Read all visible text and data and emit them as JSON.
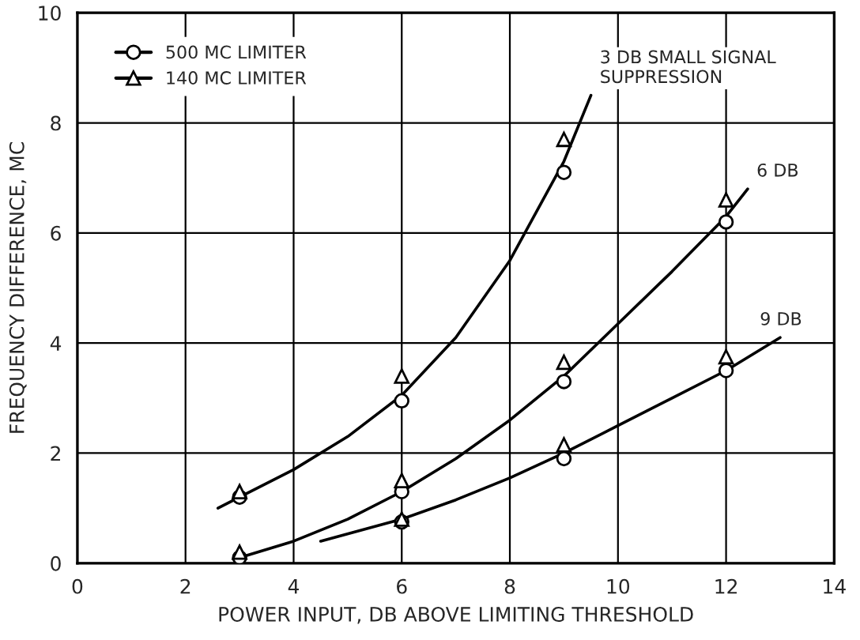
{
  "chart_data": {
    "type": "scatter",
    "xlabel": "POWER INPUT, DB ABOVE LIMITING THRESHOLD",
    "ylabel": "FREQUENCY DIFFERENCE, MC",
    "xlim": [
      0,
      14
    ],
    "ylim": [
      0,
      10
    ],
    "xticks": [
      0,
      2,
      4,
      6,
      8,
      10,
      12,
      14
    ],
    "yticks": [
      0,
      2,
      4,
      6,
      8,
      10
    ],
    "grid": true,
    "legend": "top left",
    "series": [
      {
        "name": "500 MC LIMITER",
        "marker": "circle",
        "color": "#000000",
        "x": [
          3,
          6,
          9,
          3,
          6,
          9,
          12,
          6,
          9,
          12
        ],
        "values": [
          1.2,
          2.95,
          7.1,
          0.1,
          1.3,
          3.3,
          6.2,
          0.75,
          1.9,
          3.5
        ]
      },
      {
        "name": "140 MC LIMITER",
        "marker": "triangle",
        "color": "#000000",
        "x": [
          3,
          6,
          9,
          3,
          6,
          9,
          12,
          6,
          9,
          12
        ],
        "values": [
          1.3,
          3.4,
          7.7,
          0.2,
          1.5,
          3.65,
          6.6,
          0.8,
          2.15,
          3.75
        ]
      },
      {
        "name": "3 DB SMALL SIGNAL\nSUPPRESSION",
        "type": "line",
        "marker": "none",
        "color": "#000000",
        "x": [
          2.6,
          3,
          4,
          5,
          6,
          7,
          8,
          9,
          9.5
        ],
        "values": [
          1.0,
          1.2,
          1.7,
          2.3,
          3.05,
          4.1,
          5.5,
          7.3,
          8.5
        ]
      },
      {
        "name": "6 DB",
        "type": "line",
        "marker": "none",
        "color": "#000000",
        "x": [
          3,
          4,
          5,
          6,
          7,
          8,
          9,
          10,
          11,
          12,
          12.4
        ],
        "values": [
          0.1,
          0.4,
          0.8,
          1.3,
          1.9,
          2.6,
          3.4,
          4.35,
          5.3,
          6.3,
          6.8
        ]
      },
      {
        "name": "9 DB",
        "type": "line",
        "marker": "none",
        "color": "#000000",
        "x": [
          4.5,
          6,
          7,
          8,
          9,
          10,
          11,
          12,
          13
        ],
        "values": [
          0.4,
          0.8,
          1.15,
          1.55,
          2.0,
          2.5,
          3.0,
          3.5,
          4.1
        ]
      }
    ]
  }
}
